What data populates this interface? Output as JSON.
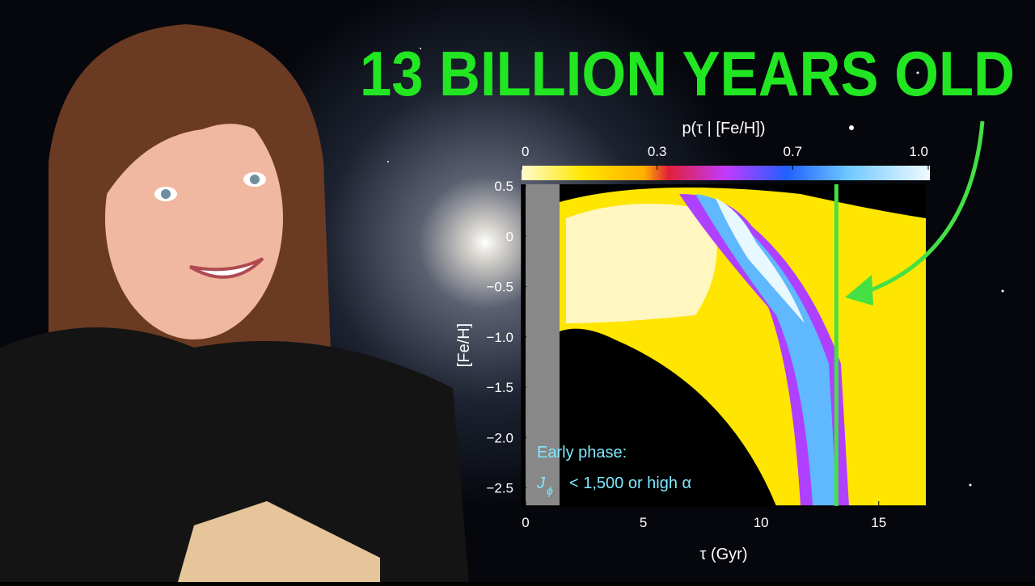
{
  "headline": "13 BILLION YEARS OLD",
  "plot": {
    "colorbar_label": "p(τ | [Fe/H])",
    "colorbar_ticks": [
      0,
      0.3,
      0.7,
      {
        "value": 1,
        "label": "1.0"
      }
    ],
    "x_label": "τ (Gyr)",
    "y_label": "[Fe/H]",
    "xlim": [
      0,
      17
    ],
    "ylim": [
      -2.68,
      0.5
    ],
    "xticks": [
      0,
      5,
      10,
      15
    ],
    "yticks": [
      0.5,
      0,
      {
        "value": -0.5,
        "label": "−0.5"
      },
      {
        "value": -1,
        "label": "−1.0"
      },
      {
        "value": -1.5,
        "label": "−1.5"
      },
      {
        "value": -2,
        "label": "−2.0"
      },
      {
        "value": -2.5,
        "label": "−2.5"
      }
    ],
    "annotation_line1": "Early phase:",
    "annotation_symbol": "J",
    "annotation_subscript": "ϕ",
    "annotation_line2": "< 1,500 or high α",
    "marker_age": 13.2
  }
}
